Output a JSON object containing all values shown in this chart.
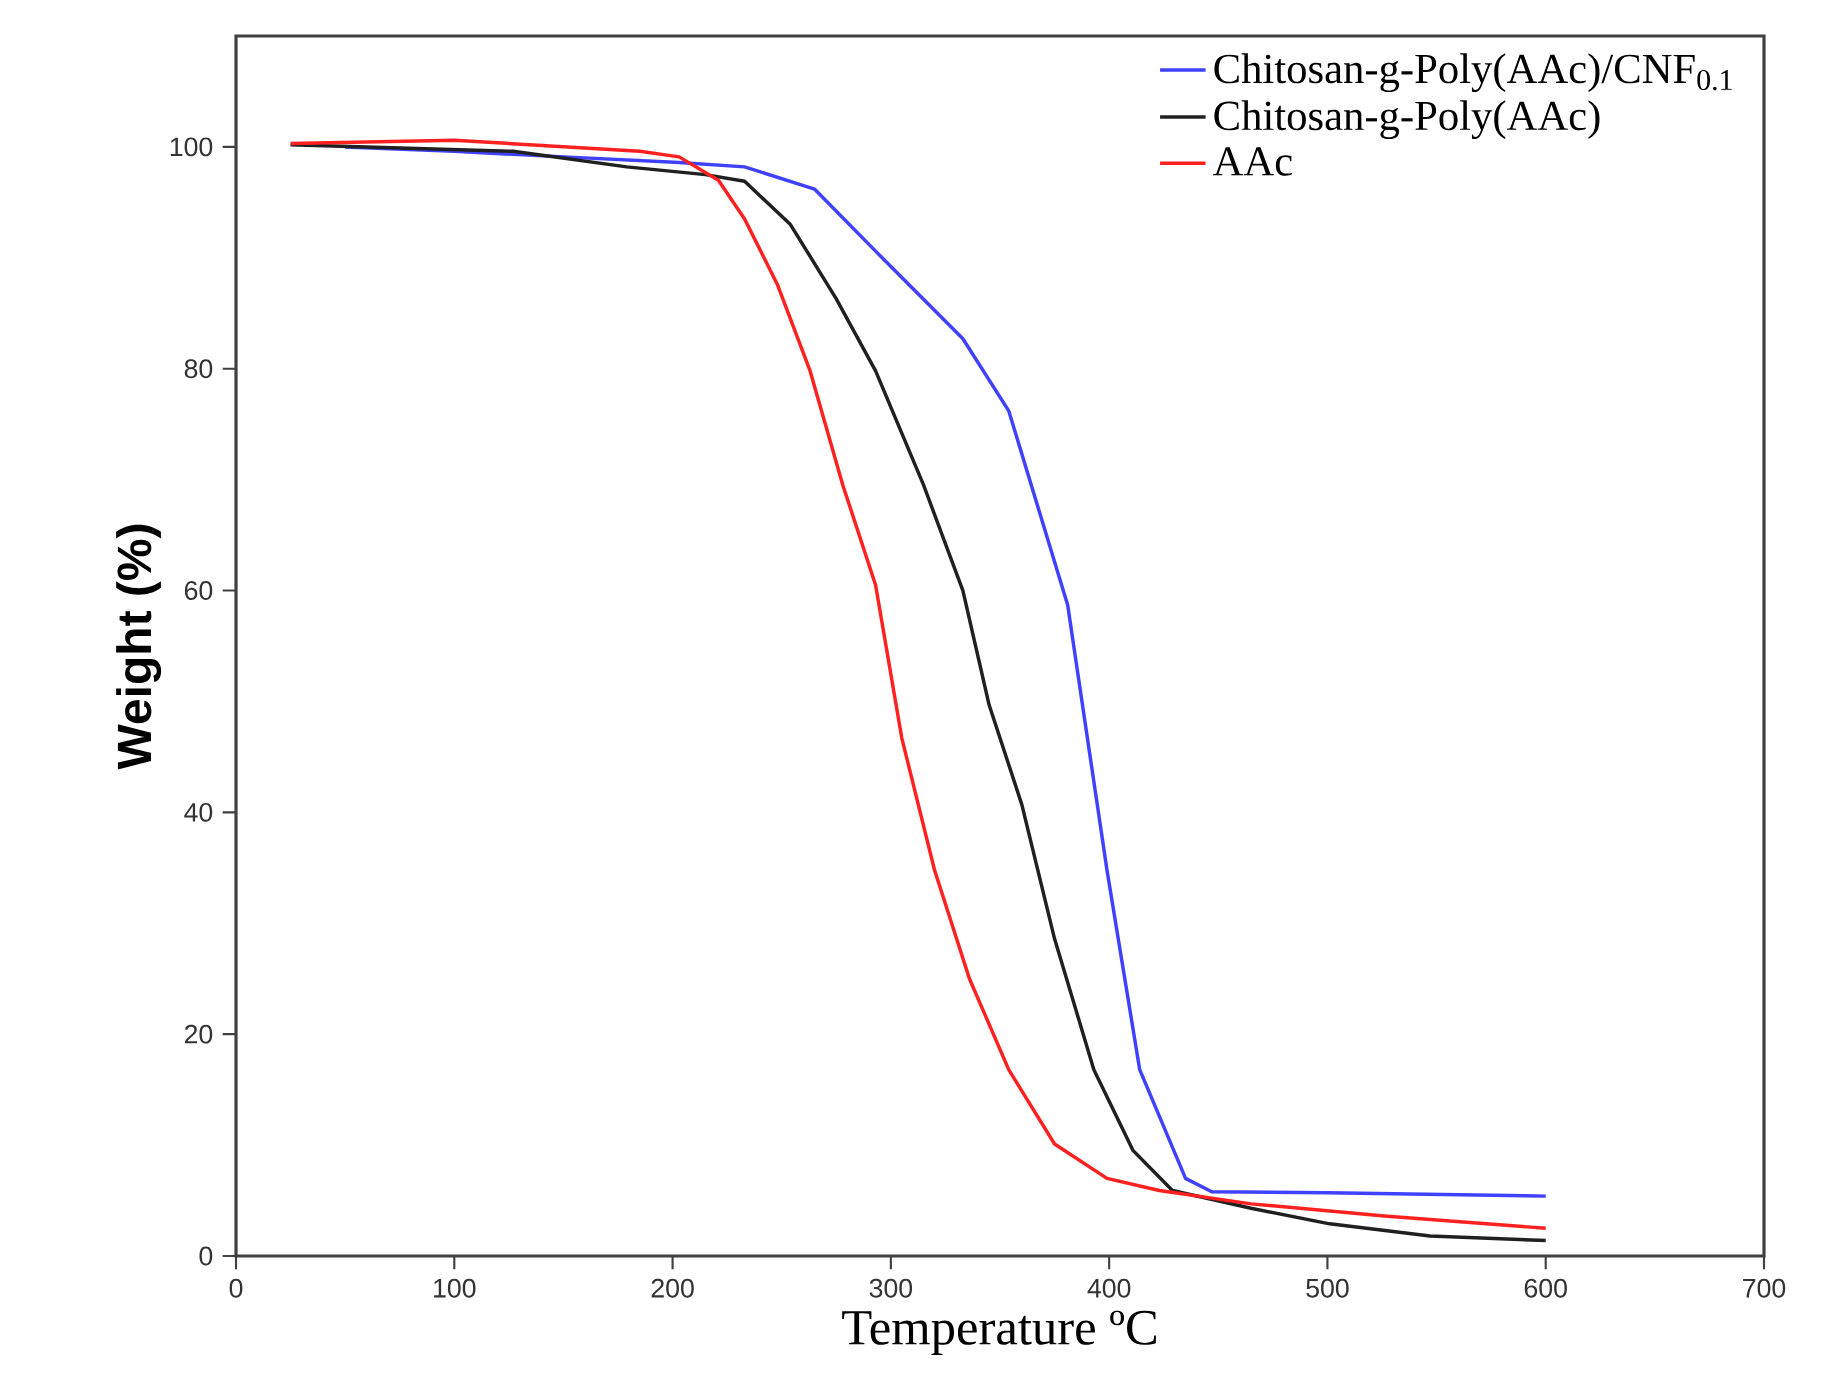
{
  "chart_data": {
    "type": "line",
    "xlabel": "Temperature ºC",
    "ylabel": "Weight (%)",
    "xlim": [
      0,
      700
    ],
    "ylim": [
      0,
      110
    ],
    "xticks": [
      0,
      100,
      200,
      300,
      400,
      500,
      600,
      700
    ],
    "yticks": [
      0,
      20,
      40,
      60,
      80,
      100
    ],
    "grid": false,
    "legend": "top right",
    "marker": "none",
    "line_style": "solid",
    "series": [
      {
        "name": "Chitosan-g-Poly(AAc)/CNF$_{0.1}$",
        "color": "#4040ff",
        "x": [
          50,
          100,
          150,
          203,
          233,
          265,
          293,
          333,
          354,
          381,
          399,
          414,
          435,
          447,
          500,
          600
        ],
        "values": [
          100.0,
          99.6,
          99.1,
          98.6,
          98.2,
          96.2,
          90.6,
          82.7,
          76.2,
          58.7,
          34.8,
          16.8,
          7.0,
          5.8,
          5.7,
          5.4
        ]
      },
      {
        "name": "Chitosan-g-Poly(AAc)",
        "color": "#202020",
        "x": [
          25,
          127,
          179,
          215,
          233,
          254,
          275,
          293,
          315,
          333,
          345,
          360,
          375,
          393,
          411,
          429,
          465,
          501,
          547,
          600
        ],
        "values": [
          100.2,
          99.6,
          98.2,
          97.5,
          96.9,
          93.0,
          86.3,
          79.8,
          69.5,
          60.0,
          49.7,
          40.7,
          28.6,
          16.8,
          9.5,
          5.9,
          4.3,
          2.9,
          1.8,
          1.4
        ]
      },
      {
        "name": "AAc",
        "color": "#ff2020",
        "x": [
          25,
          100,
          185,
          203,
          221,
          233,
          248,
          263,
          278,
          293,
          305,
          320,
          336,
          354,
          375,
          399,
          423,
          465,
          526,
          600
        ],
        "values": [
          100.3,
          100.6,
          99.6,
          99.1,
          97.0,
          93.5,
          87.6,
          79.8,
          69.5,
          60.5,
          46.7,
          34.8,
          25.0,
          16.8,
          10.1,
          7.0,
          5.9,
          4.7,
          3.6,
          2.5
        ]
      }
    ]
  }
}
